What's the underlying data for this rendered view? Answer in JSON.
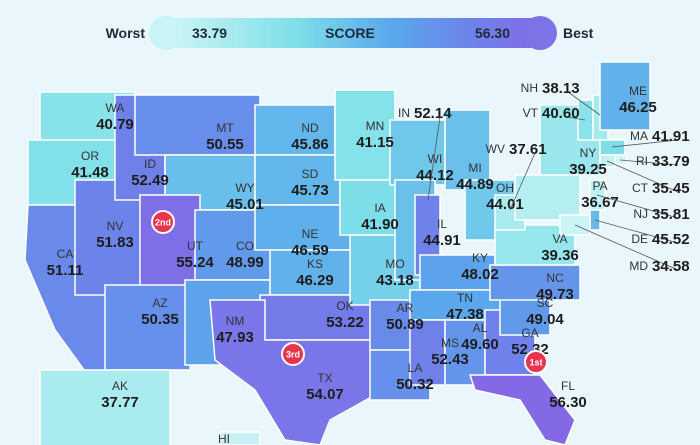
{
  "legend": {
    "worst": "Worst",
    "min": "33.79",
    "title": "SCORE",
    "max": "56.30",
    "best": "Best"
  },
  "states": [
    {
      "abbr": "WA",
      "score": "40.79"
    },
    {
      "abbr": "OR",
      "score": "41.48"
    },
    {
      "abbr": "CA",
      "score": "51.11"
    },
    {
      "abbr": "NV",
      "score": "51.83"
    },
    {
      "abbr": "ID",
      "score": "52.49"
    },
    {
      "abbr": "MT",
      "score": "50.55"
    },
    {
      "abbr": "WY",
      "score": "45.01"
    },
    {
      "abbr": "UT",
      "score": "55.24",
      "rank": "2nd"
    },
    {
      "abbr": "CO",
      "score": "48.99"
    },
    {
      "abbr": "AZ",
      "score": "50.35"
    },
    {
      "abbr": "NM",
      "score": "47.93"
    },
    {
      "abbr": "ND",
      "score": "45.86"
    },
    {
      "abbr": "SD",
      "score": "45.73"
    },
    {
      "abbr": "NE",
      "score": "46.59"
    },
    {
      "abbr": "KS",
      "score": "46.29"
    },
    {
      "abbr": "OK",
      "score": "53.22"
    },
    {
      "abbr": "TX",
      "score": "54.07",
      "rank": "3rd"
    },
    {
      "abbr": "MN",
      "score": "41.15"
    },
    {
      "abbr": "IA",
      "score": "41.90"
    },
    {
      "abbr": "MO",
      "score": "43.18"
    },
    {
      "abbr": "AR",
      "score": "50.89"
    },
    {
      "abbr": "LA",
      "score": "50.32"
    },
    {
      "abbr": "WI",
      "score": "44.12"
    },
    {
      "abbr": "IL",
      "score": "44.91"
    },
    {
      "abbr": "MI",
      "score": "44.89"
    },
    {
      "abbr": "IN",
      "score": "52.14"
    },
    {
      "abbr": "OH",
      "score": "44.01"
    },
    {
      "abbr": "KY",
      "score": "48.02"
    },
    {
      "abbr": "TN",
      "score": "47.38"
    },
    {
      "abbr": "MS",
      "score": "52.43"
    },
    {
      "abbr": "AL",
      "score": "49.60"
    },
    {
      "abbr": "GA",
      "score": "52.32"
    },
    {
      "abbr": "FL",
      "score": "56.30",
      "rank": "1st"
    },
    {
      "abbr": "SC",
      "score": "49.04"
    },
    {
      "abbr": "NC",
      "score": "49.73"
    },
    {
      "abbr": "VA",
      "score": "39.36"
    },
    {
      "abbr": "WV",
      "score": "37.61"
    },
    {
      "abbr": "PA",
      "score": "36.67"
    },
    {
      "abbr": "NY",
      "score": "39.25"
    },
    {
      "abbr": "VT",
      "score": "40.60"
    },
    {
      "abbr": "NH",
      "score": "38.13"
    },
    {
      "abbr": "ME",
      "score": "46.25"
    },
    {
      "abbr": "MA",
      "score": "41.91"
    },
    {
      "abbr": "RI",
      "score": "33.79"
    },
    {
      "abbr": "CT",
      "score": "35.45"
    },
    {
      "abbr": "NJ",
      "score": "35.81"
    },
    {
      "abbr": "DE",
      "score": "45.52"
    },
    {
      "abbr": "MD",
      "score": "34.58"
    },
    {
      "abbr": "AK",
      "score": "37.77"
    },
    {
      "abbr": "HI"
    }
  ]
}
